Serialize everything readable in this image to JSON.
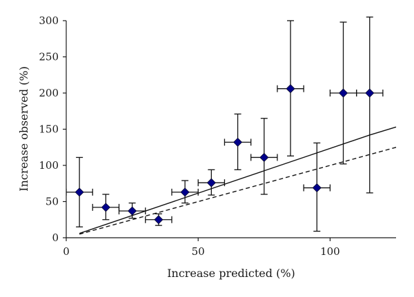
{
  "chart_data": {
    "type": "scatter",
    "title": "",
    "xlabel": "Increase predicted (%)",
    "ylabel": "Increase observed (%)",
    "xlim": [
      0,
      125
    ],
    "ylim": [
      0,
      300
    ],
    "x_ticks": [
      0,
      50,
      100
    ],
    "y_ticks": [
      0,
      50,
      100,
      150,
      200,
      250,
      300
    ],
    "grid": false,
    "legend": "none",
    "marker_color": "#00008b",
    "points": [
      {
        "x": 5,
        "y": 63,
        "x_err": 5,
        "y_low": 15,
        "y_high": 111
      },
      {
        "x": 15,
        "y": 42,
        "x_err": 5,
        "y_low": 25,
        "y_high": 60
      },
      {
        "x": 25,
        "y": 37,
        "x_err": 5,
        "y_low": 27,
        "y_high": 48
      },
      {
        "x": 35,
        "y": 25,
        "x_err": 5,
        "y_low": 17,
        "y_high": 33
      },
      {
        "x": 45,
        "y": 63,
        "x_err": 5,
        "y_low": 48,
        "y_high": 79
      },
      {
        "x": 55,
        "y": 76,
        "x_err": 5,
        "y_low": 59,
        "y_high": 94
      },
      {
        "x": 65,
        "y": 132,
        "x_err": 5,
        "y_low": 94,
        "y_high": 171
      },
      {
        "x": 75,
        "y": 111,
        "x_err": 5,
        "y_low": 60,
        "y_high": 165
      },
      {
        "x": 85,
        "y": 206,
        "x_err": 5,
        "y_low": 113,
        "y_high": 300
      },
      {
        "x": 95,
        "y": 69,
        "x_err": 5,
        "y_low": 9,
        "y_high": 131
      },
      {
        "x": 105,
        "y": 200,
        "x_err": 5,
        "y_low": 102,
        "y_high": 298
      },
      {
        "x": 115,
        "y": 200,
        "x_err": 5,
        "y_low": 62,
        "y_high": 305
      }
    ],
    "lines": [
      {
        "style": "solid",
        "x": [
          5,
          115,
          125
        ],
        "y": [
          6,
          142,
          153
        ]
      },
      {
        "style": "dashed",
        "x": [
          5,
          125
        ],
        "y": [
          5,
          125
        ]
      }
    ]
  }
}
